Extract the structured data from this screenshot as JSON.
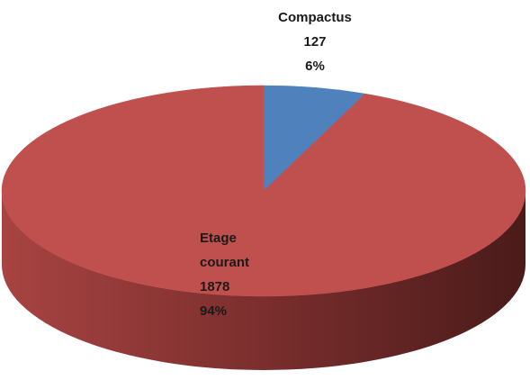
{
  "chart_data": {
    "type": "pie",
    "categories": [
      "Compactus",
      "Etage courant"
    ],
    "values": [
      127,
      1878
    ],
    "percent_labels": [
      "6%",
      "94%"
    ],
    "colors": [
      "#4f81bd",
      "#c0504d"
    ]
  }
}
